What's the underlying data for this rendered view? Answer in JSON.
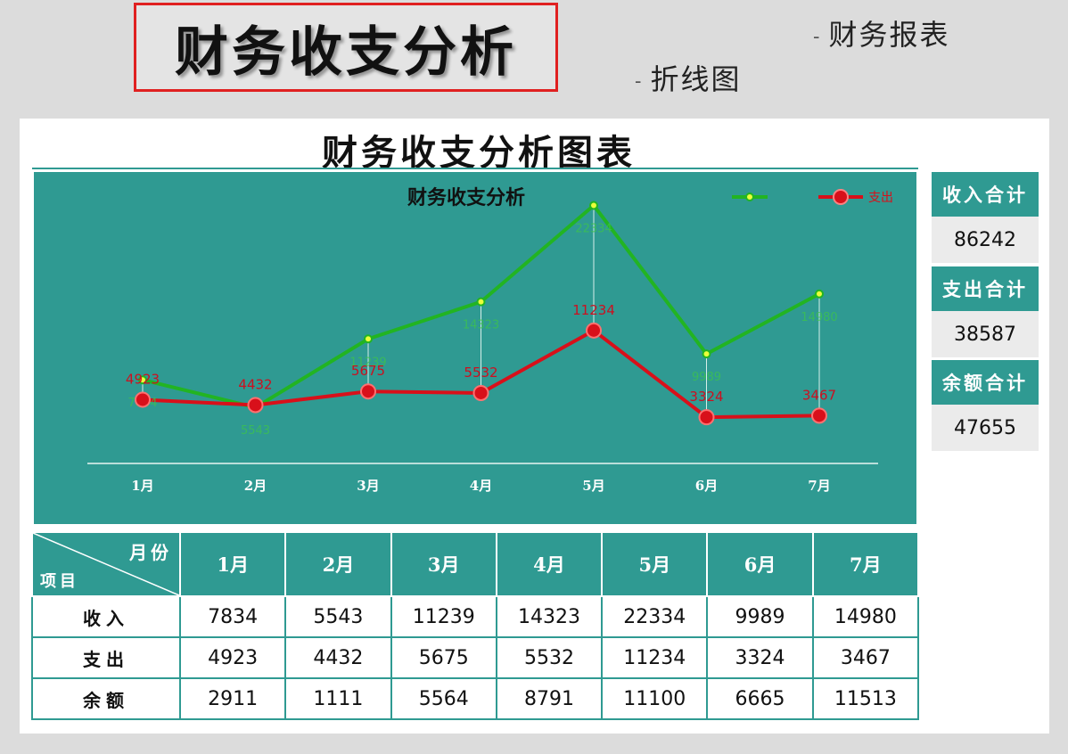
{
  "header": {
    "title": "财务收支分析",
    "tags": [
      "财务报表",
      "折线图"
    ],
    "tag_dash": "-"
  },
  "panel": {
    "title": "财务收支分析图表"
  },
  "summary": [
    {
      "label": "收入合计",
      "value": "86242"
    },
    {
      "label": "支出合计",
      "value": "38587"
    },
    {
      "label": "余额合计",
      "value": "47655"
    }
  ],
  "table": {
    "corner_top": "月份",
    "corner_bottom": "项目",
    "months": [
      "1月",
      "2月",
      "3月",
      "4月",
      "5月",
      "6月",
      "7月"
    ],
    "rows": [
      {
        "label": "收入",
        "values": [
          "7834",
          "5543",
          "11239",
          "14323",
          "22334",
          "9989",
          "14980"
        ]
      },
      {
        "label": "支出",
        "values": [
          "4923",
          "4432",
          "5675",
          "5532",
          "11234",
          "3324",
          "3467"
        ]
      },
      {
        "label": "余额",
        "values": [
          "2911",
          "1111",
          "5564",
          "8791",
          "11100",
          "6665",
          "11513"
        ]
      }
    ]
  },
  "colors": {
    "teal": "#2f9a92",
    "income_line": "#22b422",
    "expense_line": "#d8101a",
    "expense_label": "#cc1020",
    "income_label": "#3dc44a"
  },
  "chart_data": {
    "type": "line",
    "title": "财务收支分析",
    "categories": [
      "1月",
      "2月",
      "3月",
      "4月",
      "5月",
      "6月",
      "7月"
    ],
    "series": [
      {
        "name": "",
        "role": "income",
        "values": [
          7834,
          5543,
          11239,
          14323,
          22334,
          9989,
          14980
        ]
      },
      {
        "name": "支出",
        "role": "expense",
        "values": [
          4923,
          4432,
          5675,
          5532,
          11234,
          3324,
          3467
        ]
      }
    ],
    "legend": "top-right",
    "grid": false
  }
}
